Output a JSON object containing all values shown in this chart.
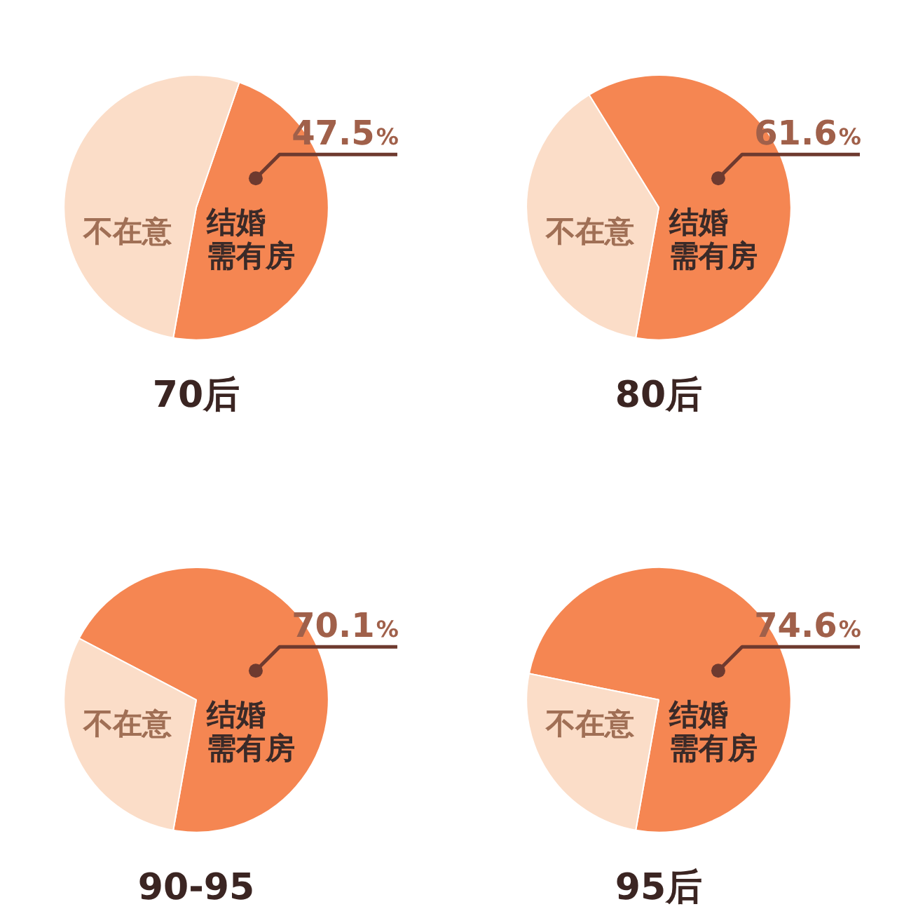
{
  "chart_data": [
    {
      "type": "pie",
      "title": "70后",
      "categories": [
        "结婚需有房",
        "不在意"
      ],
      "values": [
        47.5,
        52.5
      ],
      "colors": [
        "#f58652",
        "#fbddc8"
      ],
      "value_labels": [
        "47.5%",
        null
      ]
    },
    {
      "type": "pie",
      "title": "80后",
      "categories": [
        "结婚需有房",
        "不在意"
      ],
      "values": [
        61.6,
        38.4
      ],
      "colors": [
        "#f58652",
        "#fbddc8"
      ],
      "value_labels": [
        "61.6%",
        null
      ]
    },
    {
      "type": "pie",
      "title": "90-95",
      "categories": [
        "结婚需有房",
        "不在意"
      ],
      "values": [
        70.1,
        29.9
      ],
      "colors": [
        "#f58652",
        "#fbddc8"
      ],
      "value_labels": [
        "70.1%",
        null
      ]
    },
    {
      "type": "pie",
      "title": "95后",
      "categories": [
        "结婚需有房",
        "不在意"
      ],
      "values": [
        74.6,
        25.4
      ],
      "colors": [
        "#f58652",
        "#fbddc8"
      ],
      "value_labels": [
        "74.6%",
        null
      ]
    }
  ]
}
